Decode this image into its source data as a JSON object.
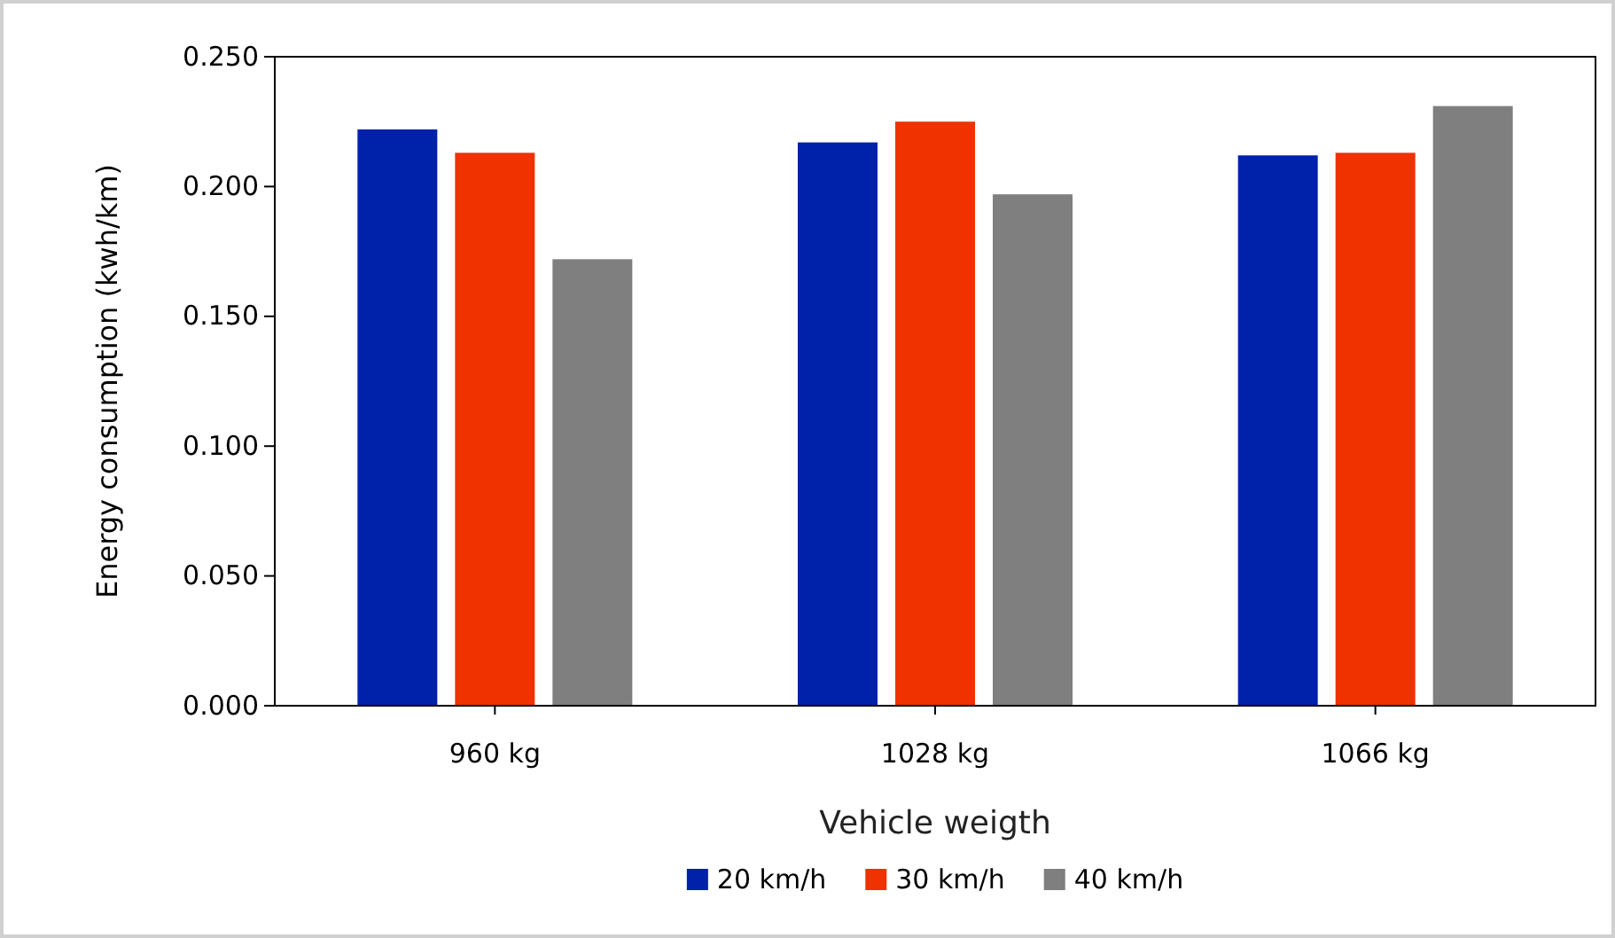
{
  "chart_data": {
    "type": "bar",
    "xlabel": "Vehicle weigth",
    "ylabel": "Energy consumption (kwh/km)",
    "categories": [
      "960 kg",
      "1028 kg",
      "1066 kg"
    ],
    "series": [
      {
        "name": "20 km/h",
        "color": "#0022aa",
        "values": [
          0.222,
          0.217,
          0.212
        ]
      },
      {
        "name": "30 km/h",
        "color": "#f03200",
        "values": [
          0.213,
          0.225,
          0.213
        ]
      },
      {
        "name": "40 km/h",
        "color": "#7f7f7f",
        "values": [
          0.172,
          0.197,
          0.231
        ]
      }
    ],
    "ylim": [
      0,
      0.25
    ],
    "yticks": [
      {
        "value": 0,
        "label": "0.000"
      },
      {
        "value": 0.05,
        "label": "0.050"
      },
      {
        "value": 0.1,
        "label": "0.100"
      },
      {
        "value": 0.15,
        "label": "0.150"
      },
      {
        "value": 0.2,
        "label": "0.200"
      },
      {
        "value": 0.25,
        "label": "0.250"
      }
    ],
    "grid": false,
    "legend": "bottom"
  }
}
